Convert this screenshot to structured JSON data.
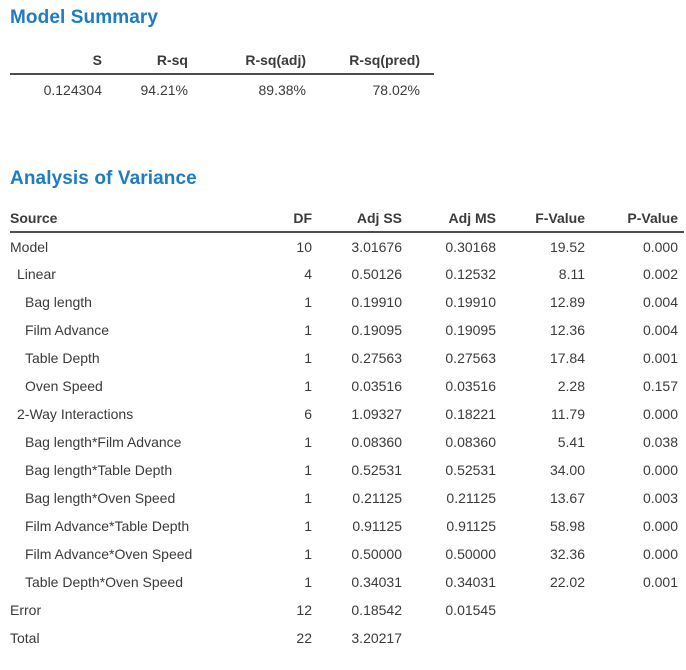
{
  "colors": {
    "accent": "#1d7cc4",
    "text": "#3b3b3b",
    "rule": "#4d4d4d"
  },
  "model_summary": {
    "title": "Model Summary",
    "columns": [
      "S",
      "R-sq",
      "R-sq(adj)",
      "R-sq(pred)"
    ],
    "values": [
      "0.124304",
      "94.21%",
      "89.38%",
      "78.02%"
    ]
  },
  "anova": {
    "title": "Analysis of Variance",
    "columns": [
      "Source",
      "DF",
      "Adj SS",
      "Adj MS",
      "F-Value",
      "P-Value"
    ],
    "rows": [
      {
        "source": "Model",
        "indent": 0,
        "df": "10",
        "adj_ss": "3.01676",
        "adj_ms": "0.30168",
        "f": "19.52",
        "p": "0.000"
      },
      {
        "source": "Linear",
        "indent": 1,
        "df": "4",
        "adj_ss": "0.50126",
        "adj_ms": "0.12532",
        "f": "8.11",
        "p": "0.002"
      },
      {
        "source": "Bag length",
        "indent": 2,
        "df": "1",
        "adj_ss": "0.19910",
        "adj_ms": "0.19910",
        "f": "12.89",
        "p": "0.004"
      },
      {
        "source": "Film Advance",
        "indent": 2,
        "df": "1",
        "adj_ss": "0.19095",
        "adj_ms": "0.19095",
        "f": "12.36",
        "p": "0.004"
      },
      {
        "source": "Table Depth",
        "indent": 2,
        "df": "1",
        "adj_ss": "0.27563",
        "adj_ms": "0.27563",
        "f": "17.84",
        "p": "0.001"
      },
      {
        "source": "Oven Speed",
        "indent": 2,
        "df": "1",
        "adj_ss": "0.03516",
        "adj_ms": "0.03516",
        "f": "2.28",
        "p": "0.157"
      },
      {
        "source": "2-Way Interactions",
        "indent": 1,
        "df": "6",
        "adj_ss": "1.09327",
        "adj_ms": "0.18221",
        "f": "11.79",
        "p": "0.000"
      },
      {
        "source": "Bag length*Film Advance",
        "indent": 2,
        "df": "1",
        "adj_ss": "0.08360",
        "adj_ms": "0.08360",
        "f": "5.41",
        "p": "0.038"
      },
      {
        "source": "Bag length*Table Depth",
        "indent": 2,
        "df": "1",
        "adj_ss": "0.52531",
        "adj_ms": "0.52531",
        "f": "34.00",
        "p": "0.000"
      },
      {
        "source": "Bag length*Oven Speed",
        "indent": 2,
        "df": "1",
        "adj_ss": "0.21125",
        "adj_ms": "0.21125",
        "f": "13.67",
        "p": "0.003"
      },
      {
        "source": "Film Advance*Table Depth",
        "indent": 2,
        "df": "1",
        "adj_ss": "0.91125",
        "adj_ms": "0.91125",
        "f": "58.98",
        "p": "0.000"
      },
      {
        "source": "Film Advance*Oven Speed",
        "indent": 2,
        "df": "1",
        "adj_ss": "0.50000",
        "adj_ms": "0.50000",
        "f": "32.36",
        "p": "0.000"
      },
      {
        "source": "Table Depth*Oven Speed",
        "indent": 2,
        "df": "1",
        "adj_ss": "0.34031",
        "adj_ms": "0.34031",
        "f": "22.02",
        "p": "0.001"
      },
      {
        "source": "Error",
        "indent": 0,
        "df": "12",
        "adj_ss": "0.18542",
        "adj_ms": "0.01545",
        "f": "",
        "p": ""
      },
      {
        "source": "Total",
        "indent": 0,
        "df": "22",
        "adj_ss": "3.20217",
        "adj_ms": "",
        "f": "",
        "p": ""
      }
    ]
  }
}
